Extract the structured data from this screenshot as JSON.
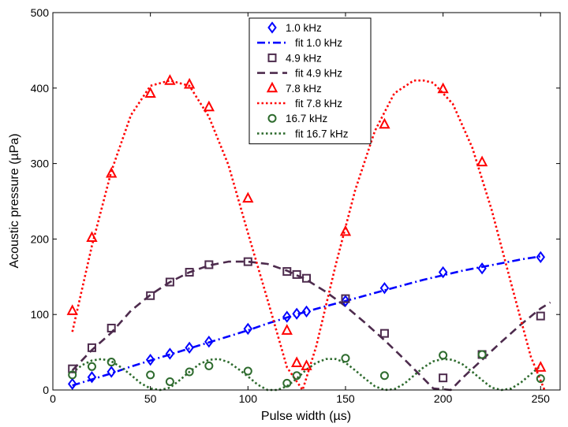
{
  "chart_data": {
    "type": "scatter",
    "xlabel": "Pulse width (µs)",
    "ylabel": "Acoustic pressure (µPa)",
    "xlim": [
      0,
      260
    ],
    "ylim": [
      0,
      500
    ],
    "xticks": [
      "0",
      "50",
      "100",
      "150",
      "200",
      "250"
    ],
    "yticks": [
      "0",
      "100",
      "200",
      "300",
      "400",
      "500"
    ],
    "grid": false,
    "legend_position": "top-center",
    "series": [
      {
        "name": "1.0 kHz",
        "kind": "markers",
        "marker": "diamond",
        "color": "#0000ff",
        "x": [
          10,
          20,
          30,
          50,
          60,
          70,
          80,
          100,
          120,
          125,
          130,
          150,
          170,
          200,
          220,
          250
        ],
        "y": [
          8,
          17,
          24,
          40,
          48,
          56,
          64,
          81,
          97,
          101,
          104,
          118,
          135,
          156,
          161,
          176
        ]
      },
      {
        "name": "fit 1.0 kHz",
        "kind": "line",
        "style": "dashdot",
        "color": "#0000ff",
        "x": [
          10,
          20,
          30,
          40,
          50,
          60,
          70,
          80,
          90,
          100,
          110,
          120,
          130,
          140,
          150,
          160,
          170,
          180,
          190,
          200,
          210,
          220,
          230,
          240,
          250
        ],
        "y": [
          6,
          14,
          22,
          31,
          39,
          47,
          55,
          63,
          71,
          79,
          88,
          96,
          104,
          111,
          118,
          125,
          132,
          139,
          146,
          152,
          158,
          163,
          168,
          173,
          177
        ]
      },
      {
        "name": "4.9 kHz",
        "kind": "markers",
        "marker": "square",
        "color": "#4d2b4d",
        "x": [
          10,
          20,
          30,
          50,
          60,
          70,
          80,
          100,
          120,
          125,
          130,
          150,
          170,
          200,
          220,
          250
        ],
        "y": [
          28,
          56,
          82,
          125,
          143,
          156,
          166,
          170,
          157,
          153,
          148,
          121,
          75,
          16,
          47,
          98
        ]
      },
      {
        "name": "fit 4.9 kHz",
        "kind": "line",
        "style": "dashed",
        "color": "#4d2b4d",
        "x": [
          10,
          20,
          30,
          40,
          50,
          60,
          70,
          80,
          90,
          100,
          110,
          120,
          130,
          140,
          150,
          160,
          170,
          180,
          190,
          195,
          204,
          210,
          220,
          230,
          240,
          250,
          255
        ],
        "y": [
          26,
          53,
          76,
          105,
          126,
          143,
          156,
          165,
          170,
          170,
          167,
          158,
          146,
          130,
          111,
          89,
          66,
          41,
          15,
          2,
          0,
          16,
          40,
          64,
          87,
          108,
          116
        ]
      },
      {
        "name": "7.8 kHz",
        "kind": "markers",
        "marker": "triangle",
        "color": "#ff0000",
        "x": [
          10,
          20,
          30,
          50,
          60,
          70,
          80,
          100,
          120,
          125,
          130,
          150,
          170,
          200,
          220,
          250
        ],
        "y": [
          105,
          202,
          287,
          393,
          410,
          405,
          375,
          254,
          79,
          36,
          32,
          210,
          352,
          399,
          302,
          30
        ]
      },
      {
        "name": "fit 7.8 kHz",
        "kind": "line",
        "style": "dotted",
        "color": "#ff0000",
        "x": [
          10,
          20,
          30,
          40,
          50,
          60,
          70,
          80,
          90,
          100,
          110,
          120,
          128,
          135,
          145,
          155,
          165,
          175,
          185,
          190,
          195,
          205,
          215,
          225,
          235,
          245,
          252
        ],
        "y": [
          77,
          191,
          290,
          364,
          403,
          410,
          403,
          362,
          298,
          208,
          120,
          30,
          0,
          58,
          166,
          265,
          343,
          393,
          410,
          410,
          407,
          379,
          321,
          238,
          140,
          44,
          0
        ]
      },
      {
        "name": "16.7 kHz",
        "kind": "markers",
        "marker": "circle",
        "color": "#2e6b2e",
        "x": [
          10,
          20,
          30,
          50,
          60,
          70,
          80,
          100,
          120,
          125,
          150,
          170,
          200,
          220,
          250
        ],
        "y": [
          20,
          31,
          37,
          20,
          11,
          24,
          32,
          25,
          9,
          19,
          42,
          19,
          46,
          47,
          15
        ]
      },
      {
        "name": "fit 16.7 kHz",
        "kind": "line",
        "style": "dotted",
        "color": "#2e6b2e",
        "x": [
          10,
          15,
          20,
          25,
          30,
          35,
          40,
          45,
          50,
          55,
          60,
          65,
          70,
          75,
          80,
          85,
          90,
          95,
          100,
          105,
          110,
          115,
          120,
          125,
          130,
          135,
          140,
          145,
          150,
          155,
          160,
          165,
          170,
          175,
          180,
          185,
          190,
          195,
          200,
          205,
          210,
          215,
          220,
          225,
          230,
          235,
          240,
          245,
          250
        ],
        "y": [
          23,
          33,
          39,
          41,
          38,
          30,
          20,
          9,
          2,
          0,
          3,
          13,
          24,
          34,
          40,
          41,
          37,
          28,
          18,
          7,
          0,
          0,
          5,
          15,
          27,
          36,
          41,
          41,
          36,
          26,
          15,
          5,
          0,
          1,
          8,
          19,
          30,
          38,
          41,
          40,
          34,
          24,
          13,
          3,
          0,
          2,
          10,
          21,
          32
        ]
      }
    ]
  }
}
